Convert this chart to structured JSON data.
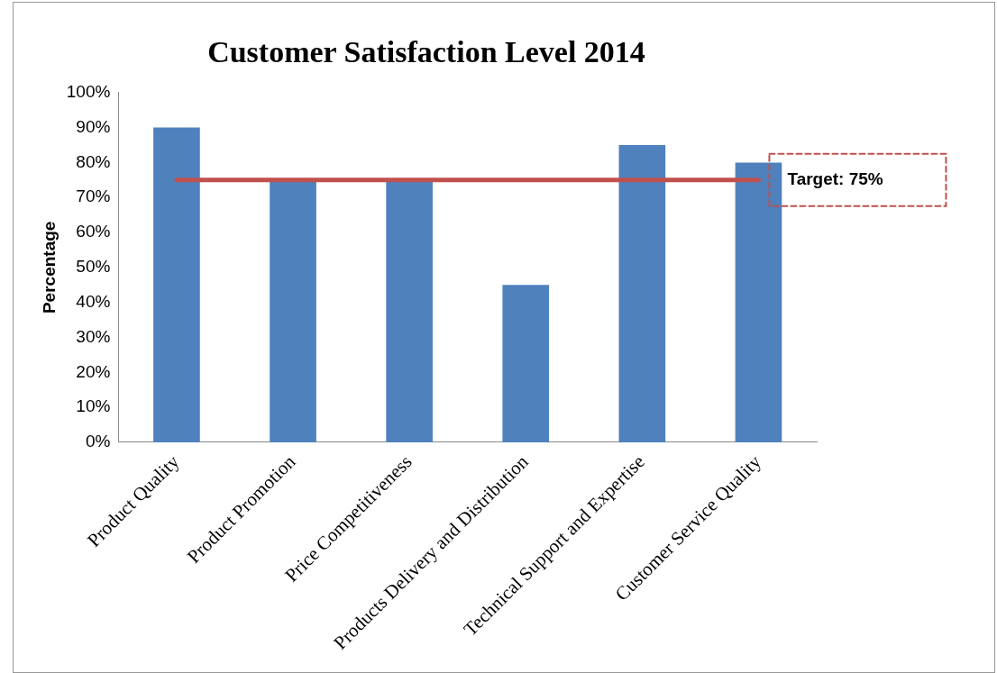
{
  "chart_data": {
    "type": "bar",
    "title": "Customer Satisfaction Level 2014",
    "ylabel": "Percentage",
    "categories": [
      "Product Quality",
      "Product Promotion",
      "Price Competitiveness",
      "Products Delivery and Distribution",
      "Technical Support and Expertise",
      "Customer Service Quality"
    ],
    "values": [
      90,
      75,
      75,
      45,
      85,
      80
    ],
    "color": "#4f81bd",
    "ylim": [
      0,
      100
    ],
    "yticks": [
      {
        "value": 0,
        "label": "0%"
      },
      {
        "value": 10,
        "label": "10%"
      },
      {
        "value": 20,
        "label": "20%"
      },
      {
        "value": 30,
        "label": "30%"
      },
      {
        "value": 40,
        "label": "40%"
      },
      {
        "value": 50,
        "label": "50%"
      },
      {
        "value": 60,
        "label": "60%"
      },
      {
        "value": 70,
        "label": "70%"
      },
      {
        "value": 80,
        "label": "80%"
      },
      {
        "value": 90,
        "label": "90%"
      },
      {
        "value": 100,
        "label": "100%"
      }
    ],
    "grid": false,
    "legend": false,
    "ref_lines": [
      {
        "axis": "y",
        "value": 75,
        "label": "Target: 75%",
        "color": "#c0504d"
      }
    ]
  }
}
